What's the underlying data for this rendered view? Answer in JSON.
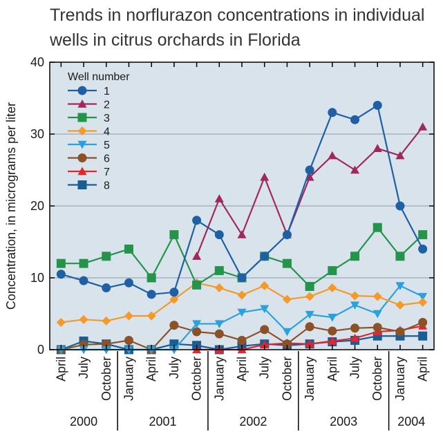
{
  "chart_data": {
    "type": "line",
    "title_lines": [
      "Trends in norflurazon concentrations in individual",
      "wells in citrus orchards in Florida"
    ],
    "xlabel": "",
    "ylabel": "Concentration, in micrograms per liter",
    "ylim": [
      0,
      40
    ],
    "yticks": [
      0,
      10,
      20,
      30,
      40
    ],
    "grid": true,
    "legend": {
      "title": "Well number",
      "placement": "top-left"
    },
    "categories": [
      "April",
      "July",
      "October",
      "January",
      "April",
      "July",
      "October",
      "January",
      "April",
      "July",
      "October",
      "January",
      "April",
      "July",
      "October",
      "January",
      "April"
    ],
    "years": [
      {
        "label": "2000",
        "start": 0,
        "end": 2
      },
      {
        "label": "2001",
        "start": 3,
        "end": 6
      },
      {
        "label": "2002",
        "start": 7,
        "end": 10
      },
      {
        "label": "2003",
        "start": 11,
        "end": 14
      },
      {
        "label": "2004",
        "start": 15,
        "end": 16
      }
    ],
    "series": [
      {
        "name": "1",
        "color": "#1f5fa3",
        "marker": "circle",
        "values": [
          10.5,
          9.6,
          8.6,
          9.3,
          7.7,
          8.0,
          18.0,
          16.0,
          10.0,
          13.0,
          16.0,
          25.0,
          33.0,
          32.0,
          34.0,
          20.0,
          14.0
        ]
      },
      {
        "name": "2",
        "color": "#a0285a",
        "marker": "triangle-up",
        "values": [
          null,
          null,
          null,
          null,
          null,
          null,
          13.0,
          21.0,
          16.0,
          24.0,
          16.0,
          24.0,
          27.0,
          25.0,
          28.0,
          27.0,
          31.0
        ]
      },
      {
        "name": "3",
        "color": "#23944a",
        "marker": "square",
        "values": [
          12.0,
          12.0,
          13.0,
          14.0,
          10.0,
          16.0,
          9.0,
          11.0,
          10.0,
          13.0,
          12.0,
          8.8,
          11.0,
          13.0,
          17.0,
          13.0,
          16.0
        ]
      },
      {
        "name": "4",
        "color": "#f39a2a",
        "marker": "diamond",
        "values": [
          3.8,
          4.2,
          4.0,
          4.7,
          4.7,
          7.0,
          9.3,
          8.6,
          7.6,
          8.9,
          7.0,
          7.4,
          8.6,
          7.5,
          7.4,
          6.2,
          6.6
        ]
      },
      {
        "name": "5",
        "color": "#2aa1dc",
        "marker": "triangle-down",
        "values": [
          0.0,
          0.0,
          0.0,
          0.0,
          0.0,
          0.0,
          3.6,
          3.6,
          5.2,
          5.7,
          2.5,
          4.9,
          4.5,
          6.2,
          5.0,
          8.9,
          7.4
        ]
      },
      {
        "name": "6",
        "color": "#8a5226",
        "marker": "circle",
        "values": [
          0.0,
          0.7,
          0.8,
          1.3,
          0.0,
          3.4,
          2.5,
          2.2,
          1.3,
          2.8,
          0.8,
          3.2,
          2.6,
          3.0,
          3.1,
          2.5,
          3.8
        ]
      },
      {
        "name": "7",
        "color": "#e3262b",
        "marker": "triangle-up",
        "values": [
          null,
          null,
          null,
          null,
          null,
          null,
          0.0,
          0.0,
          0.0,
          0.7,
          0.9,
          0.8,
          1.2,
          1.6,
          2.5,
          2.7,
          3.3
        ]
      },
      {
        "name": "8",
        "color": "#1a5c94",
        "marker": "square",
        "values": [
          0.0,
          1.2,
          0.8,
          0.0,
          0.0,
          0.8,
          0.6,
          0.0,
          0.5,
          0.8,
          0.6,
          0.8,
          1.1,
          1.3,
          1.9,
          1.9,
          1.9
        ]
      }
    ]
  }
}
